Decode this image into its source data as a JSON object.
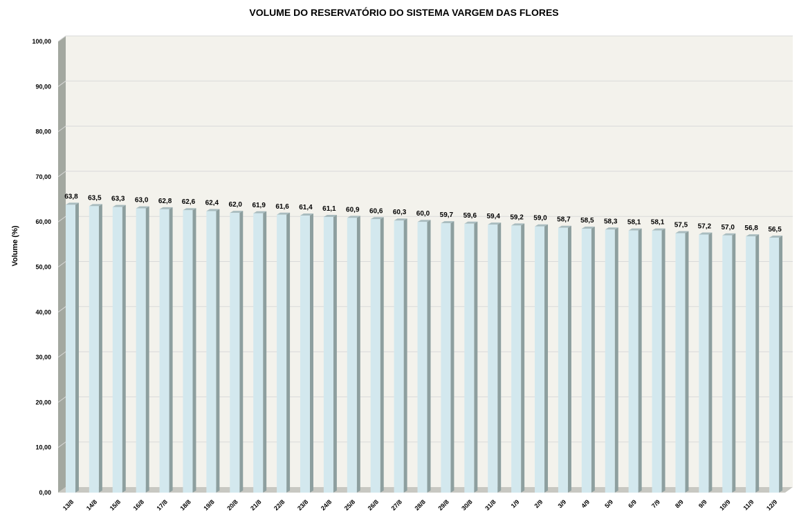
{
  "chart_data": {
    "type": "bar",
    "title": "VOLUME DO RESERVATÓRIO DO SISTEMA VARGEM DAS FLORES",
    "xlabel": "",
    "ylabel": "Volume (%)",
    "ylim": [
      0,
      100
    ],
    "yticks": [
      "0,00",
      "10,00",
      "20,00",
      "30,00",
      "40,00",
      "50,00",
      "60,00",
      "70,00",
      "80,00",
      "90,00",
      "100,00"
    ],
    "grid": true,
    "categories": [
      "13/8",
      "14/8",
      "15/8",
      "16/8",
      "17/8",
      "18/8",
      "19/8",
      "20/8",
      "21/8",
      "22/8",
      "23/8",
      "24/8",
      "25/8",
      "26/8",
      "27/8",
      "28/8",
      "29/8",
      "30/8",
      "31/8",
      "1/9",
      "2/9",
      "3/9",
      "4/9",
      "5/9",
      "6/9",
      "7/9",
      "8/9",
      "9/9",
      "10/9",
      "11/9",
      "12/9"
    ],
    "values": [
      63.8,
      63.5,
      63.3,
      63.0,
      62.8,
      62.6,
      62.4,
      62.0,
      61.9,
      61.6,
      61.4,
      61.1,
      60.9,
      60.6,
      60.3,
      60.0,
      59.7,
      59.6,
      59.4,
      59.2,
      59.0,
      58.7,
      58.5,
      58.3,
      58.1,
      58.1,
      57.5,
      57.2,
      57.0,
      56.8,
      56.5
    ],
    "value_labels": [
      "63,8",
      "63,5",
      "63,3",
      "63,0",
      "62,8",
      "62,6",
      "62,4",
      "62,0",
      "61,9",
      "61,6",
      "61,4",
      "61,1",
      "60,9",
      "60,6",
      "60,3",
      "60,0",
      "59,7",
      "59,6",
      "59,4",
      "59,2",
      "59,0",
      "58,7",
      "58,5",
      "58,3",
      "58,1",
      "58,1",
      "57,5",
      "57,2",
      "57,0",
      "56,8",
      "56,5"
    ],
    "colors": {
      "bar_front": "#d3e8ee",
      "bar_side": "#8d9f9f",
      "bar_top": "#a9bcbf",
      "plot_background": "#f3f2ec",
      "wall_side": "#a3a8a0",
      "floor": "#c8c8c2",
      "gridline": "#d9d9d9"
    }
  }
}
